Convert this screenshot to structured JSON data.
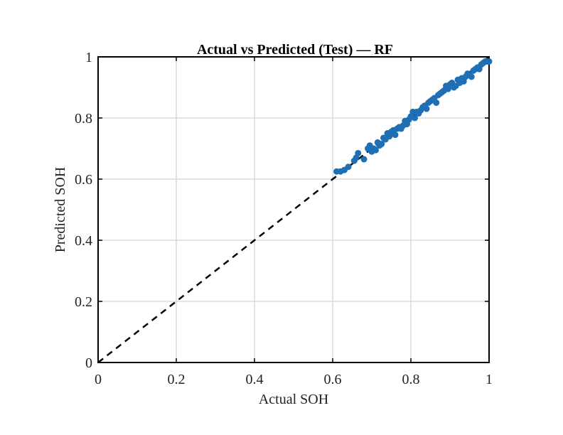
{
  "chart_data": {
    "type": "scatter",
    "title": "Actual vs Predicted (Test) — RF",
    "xlabel": "Actual SOH",
    "ylabel": "Predicted SOH",
    "xlim": [
      0,
      1
    ],
    "ylim": [
      0,
      1
    ],
    "xticks": [
      0,
      0.2,
      0.4,
      0.6,
      0.8,
      1
    ],
    "yticks": [
      0,
      0.2,
      0.4,
      0.6,
      0.8,
      1
    ],
    "xtick_labels": [
      "0",
      "0.2",
      "0.4",
      "0.6",
      "0.8",
      "1"
    ],
    "ytick_labels": [
      "0",
      "0.2",
      "0.4",
      "0.6",
      "0.8",
      "1"
    ],
    "grid": true,
    "reference_line": {
      "style": "dashed",
      "color": "#000000",
      "x": [
        0,
        1
      ],
      "y": [
        0,
        1
      ]
    },
    "series": [
      {
        "color": "#1f6fb4",
        "points": [
          [
            0.61,
            0.625
          ],
          [
            0.62,
            0.625
          ],
          [
            0.63,
            0.63
          ],
          [
            0.64,
            0.64
          ],
          [
            0.655,
            0.66
          ],
          [
            0.66,
            0.67
          ],
          [
            0.665,
            0.685
          ],
          [
            0.68,
            0.665
          ],
          [
            0.69,
            0.7
          ],
          [
            0.695,
            0.71
          ],
          [
            0.7,
            0.69
          ],
          [
            0.705,
            0.7
          ],
          [
            0.71,
            0.695
          ],
          [
            0.715,
            0.72
          ],
          [
            0.72,
            0.71
          ],
          [
            0.725,
            0.715
          ],
          [
            0.73,
            0.735
          ],
          [
            0.735,
            0.73
          ],
          [
            0.74,
            0.75
          ],
          [
            0.745,
            0.74
          ],
          [
            0.75,
            0.755
          ],
          [
            0.755,
            0.76
          ],
          [
            0.76,
            0.745
          ],
          [
            0.765,
            0.765
          ],
          [
            0.77,
            0.77
          ],
          [
            0.775,
            0.765
          ],
          [
            0.78,
            0.775
          ],
          [
            0.785,
            0.79
          ],
          [
            0.79,
            0.78
          ],
          [
            0.795,
            0.795
          ],
          [
            0.8,
            0.805
          ],
          [
            0.805,
            0.82
          ],
          [
            0.81,
            0.8
          ],
          [
            0.815,
            0.82
          ],
          [
            0.82,
            0.815
          ],
          [
            0.825,
            0.825
          ],
          [
            0.83,
            0.835
          ],
          [
            0.835,
            0.84
          ],
          [
            0.84,
            0.83
          ],
          [
            0.845,
            0.85
          ],
          [
            0.85,
            0.855
          ],
          [
            0.855,
            0.86
          ],
          [
            0.86,
            0.865
          ],
          [
            0.865,
            0.85
          ],
          [
            0.87,
            0.875
          ],
          [
            0.875,
            0.88
          ],
          [
            0.88,
            0.885
          ],
          [
            0.885,
            0.89
          ],
          [
            0.89,
            0.905
          ],
          [
            0.895,
            0.895
          ],
          [
            0.9,
            0.91
          ],
          [
            0.905,
            0.915
          ],
          [
            0.91,
            0.9
          ],
          [
            0.915,
            0.905
          ],
          [
            0.92,
            0.925
          ],
          [
            0.925,
            0.915
          ],
          [
            0.93,
            0.93
          ],
          [
            0.935,
            0.92
          ],
          [
            0.94,
            0.935
          ],
          [
            0.945,
            0.945
          ],
          [
            0.95,
            0.94
          ],
          [
            0.955,
            0.935
          ],
          [
            0.96,
            0.955
          ],
          [
            0.965,
            0.96
          ],
          [
            0.97,
            0.965
          ],
          [
            0.975,
            0.96
          ],
          [
            0.98,
            0.975
          ],
          [
            0.985,
            0.98
          ],
          [
            0.99,
            0.985
          ],
          [
            0.995,
            0.985
          ],
          [
            1.0,
            0.985
          ]
        ]
      }
    ]
  }
}
